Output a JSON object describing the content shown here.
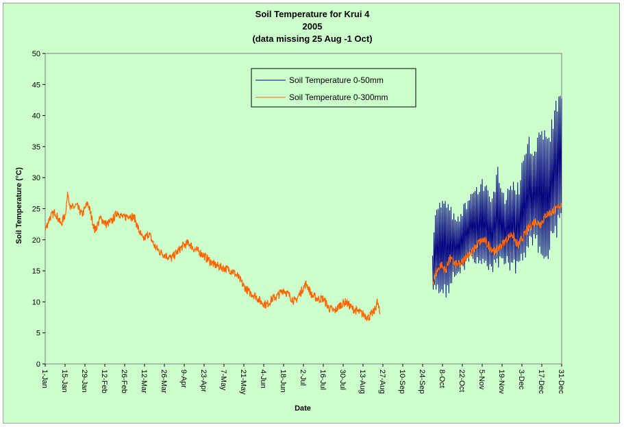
{
  "chart_data": {
    "type": "line",
    "title_lines": [
      "Soil Temperature for Krui 4",
      "2005",
      "(data missing 25 Aug -1 Oct)"
    ],
    "xlabel": "Date",
    "ylabel": "Soil Temperature (°C)",
    "ylim": [
      0,
      50
    ],
    "y_ticks": [
      0,
      5,
      10,
      15,
      20,
      25,
      30,
      35,
      40,
      45,
      50
    ],
    "x_range_day_of_year": [
      1,
      365
    ],
    "x_ticks": [
      {
        "label": "1-Jan",
        "day": 1
      },
      {
        "label": "15-Jan",
        "day": 15
      },
      {
        "label": "29-Jan",
        "day": 29
      },
      {
        "label": "12-Feb",
        "day": 43
      },
      {
        "label": "26-Feb",
        "day": 57
      },
      {
        "label": "12-Mar",
        "day": 71
      },
      {
        "label": "26-Mar",
        "day": 85
      },
      {
        "label": "9-Apr",
        "day": 99
      },
      {
        "label": "23-Apr",
        "day": 113
      },
      {
        "label": "7-May",
        "day": 127
      },
      {
        "label": "21-May",
        "day": 141
      },
      {
        "label": "4-Jun",
        "day": 155
      },
      {
        "label": "18-Jun",
        "day": 169
      },
      {
        "label": "2-Jul",
        "day": 183
      },
      {
        "label": "16-Jul",
        "day": 197
      },
      {
        "label": "30-Jul",
        "day": 211
      },
      {
        "label": "13-Aug",
        "day": 225
      },
      {
        "label": "27-Aug",
        "day": 239
      },
      {
        "label": "10-Sep",
        "day": 253
      },
      {
        "label": "24-Sep",
        "day": 267
      },
      {
        "label": "8-Oct",
        "day": 281
      },
      {
        "label": "22-Oct",
        "day": 295
      },
      {
        "label": "5-Nov",
        "day": 309
      },
      {
        "label": "19-Nov",
        "day": 323
      },
      {
        "label": "3-Dec",
        "day": 337
      },
      {
        "label": "17-Dec",
        "day": 351
      },
      {
        "label": "31-Dec",
        "day": 365
      }
    ],
    "grid": false,
    "legend_position": "top-center",
    "series": [
      {
        "name": "Soil Temperature 0-50mm",
        "color": "#000080",
        "line_width": 1,
        "daily_oscillation": true,
        "points": [
          {
            "day": 274,
            "min": 10,
            "max": 19
          },
          {
            "day": 276,
            "min": 12,
            "max": 25
          },
          {
            "day": 279,
            "min": 11,
            "max": 27
          },
          {
            "day": 282,
            "min": 10,
            "max": 27
          },
          {
            "day": 285,
            "min": 11,
            "max": 28
          },
          {
            "day": 288,
            "min": 13,
            "max": 25
          },
          {
            "day": 292,
            "min": 14,
            "max": 24
          },
          {
            "day": 296,
            "min": 15,
            "max": 26
          },
          {
            "day": 300,
            "min": 16,
            "max": 27
          },
          {
            "day": 305,
            "min": 16,
            "max": 29
          },
          {
            "day": 310,
            "min": 16,
            "max": 30
          },
          {
            "day": 315,
            "min": 14,
            "max": 28
          },
          {
            "day": 320,
            "min": 15,
            "max": 32
          },
          {
            "day": 325,
            "min": 15,
            "max": 28
          },
          {
            "day": 330,
            "min": 15,
            "max": 30
          },
          {
            "day": 335,
            "min": 14,
            "max": 30
          },
          {
            "day": 340,
            "min": 17,
            "max": 37
          },
          {
            "day": 345,
            "min": 18,
            "max": 36
          },
          {
            "day": 350,
            "min": 17,
            "max": 40
          },
          {
            "day": 355,
            "min": 16,
            "max": 38
          },
          {
            "day": 360,
            "min": 19,
            "max": 42
          },
          {
            "day": 365,
            "min": 22,
            "max": 44
          }
        ]
      },
      {
        "name": "Soil Temperature  0-300mm",
        "color": "#ff6600",
        "line_width": 1,
        "segments": [
          [
            [
              1,
              21.5
            ],
            [
              4,
              23.5
            ],
            [
              8,
              24.5
            ],
            [
              12,
              22.5
            ],
            [
              15,
              24
            ],
            [
              17,
              27.5
            ],
            [
              19,
              25
            ],
            [
              23,
              25.5
            ],
            [
              27,
              24
            ],
            [
              31,
              26
            ],
            [
              36,
              21.5
            ],
            [
              40,
              23.5
            ],
            [
              44,
              22.5
            ],
            [
              48,
              23
            ],
            [
              52,
              24.5
            ],
            [
              56,
              23.5
            ],
            [
              60,
              24
            ],
            [
              64,
              23.5
            ],
            [
              67,
              21.5
            ],
            [
              70,
              20
            ],
            [
              74,
              21
            ],
            [
              78,
              19
            ],
            [
              82,
              18
            ],
            [
              86,
              17.5
            ],
            [
              90,
              17
            ],
            [
              94,
              18
            ],
            [
              98,
              19
            ],
            [
              102,
              19.5
            ],
            [
              106,
              18.5
            ],
            [
              110,
              18
            ],
            [
              115,
              17
            ],
            [
              120,
              16
            ],
            [
              126,
              15.5
            ],
            [
              133,
              15
            ],
            [
              137,
              14
            ],
            [
              141,
              12.5
            ],
            [
              145,
              11.5
            ],
            [
              149,
              11
            ],
            [
              153,
              10
            ],
            [
              157,
              9.5
            ],
            [
              161,
              10.5
            ],
            [
              165,
              11
            ],
            [
              169,
              12
            ],
            [
              173,
              11
            ],
            [
              177,
              10
            ],
            [
              181,
              11.5
            ],
            [
              185,
              13
            ],
            [
              189,
              11
            ],
            [
              193,
              10.5
            ],
            [
              197,
              10.5
            ],
            [
              201,
              9
            ],
            [
              205,
              8.5
            ],
            [
              209,
              9.5
            ],
            [
              213,
              10
            ],
            [
              217,
              9
            ],
            [
              221,
              8.5
            ],
            [
              225,
              8
            ],
            [
              229,
              7.5
            ],
            [
              233,
              8.5
            ],
            [
              235,
              10
            ],
            [
              237,
              8
            ]
          ],
          [
            [
              274,
              13
            ],
            [
              277,
              15
            ],
            [
              280,
              16
            ],
            [
              283,
              15
            ],
            [
              286,
              17
            ],
            [
              290,
              16
            ],
            [
              294,
              16
            ],
            [
              298,
              17.5
            ],
            [
              302,
              18
            ],
            [
              306,
              19.5
            ],
            [
              310,
              20
            ],
            [
              314,
              19
            ],
            [
              318,
              18
            ],
            [
              322,
              19
            ],
            [
              326,
              20
            ],
            [
              330,
              21
            ],
            [
              334,
              19
            ],
            [
              338,
              20.5
            ],
            [
              342,
              22
            ],
            [
              346,
              23
            ],
            [
              350,
              22.5
            ],
            [
              354,
              24
            ],
            [
              358,
              24.5
            ],
            [
              362,
              25
            ],
            [
              365,
              26
            ]
          ]
        ]
      }
    ]
  }
}
